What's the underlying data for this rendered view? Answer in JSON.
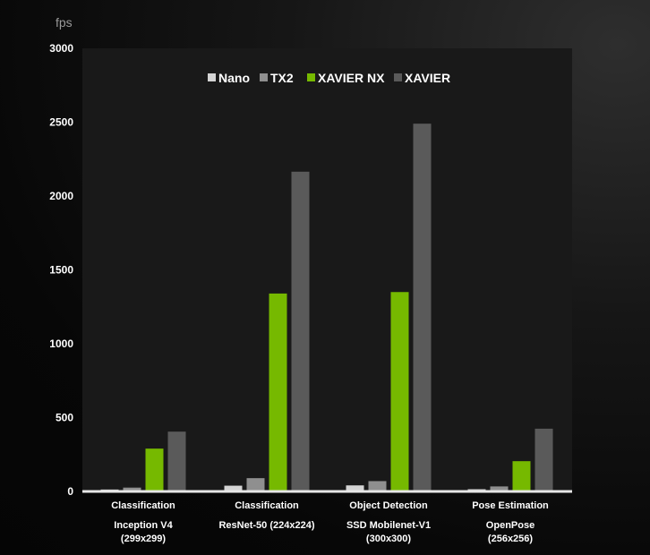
{
  "chart_data": {
    "type": "bar",
    "title": "",
    "xlabel": "",
    "ylabel": "fps",
    "ylim": [
      0,
      3000
    ],
    "yticks": [
      "0",
      "500",
      "1000",
      "1500",
      "2000",
      "2500",
      "3000"
    ],
    "grid": false,
    "legend_position": "top-center",
    "categories": [
      {
        "line1": "Classification",
        "line2": "Inception V4",
        "line3": "(299x299)"
      },
      {
        "line1": "Classification",
        "line2": "ResNet-50 (224x224)",
        "line3": ""
      },
      {
        "line1": "Object Detection",
        "line2": "SSD Mobilenet-V1",
        "line3": "(300x300)"
      },
      {
        "line1": "Pose Estimation",
        "line2": "OpenPose",
        "line3": "(256x256)"
      }
    ],
    "series": [
      {
        "name": "Nano",
        "color": "#d4d4d4",
        "values": [
          13,
          39,
          41,
          15
        ]
      },
      {
        "name": "TX2",
        "color": "#8f8f8f",
        "values": [
          26,
          90,
          70,
          34
        ]
      },
      {
        "name": "XAVIER NX",
        "color": "#76b900",
        "values": [
          290,
          1340,
          1350,
          205
        ]
      },
      {
        "name": "XAVIER",
        "color": "#5a5a5a",
        "values": [
          405,
          2165,
          2490,
          425
        ]
      }
    ]
  }
}
